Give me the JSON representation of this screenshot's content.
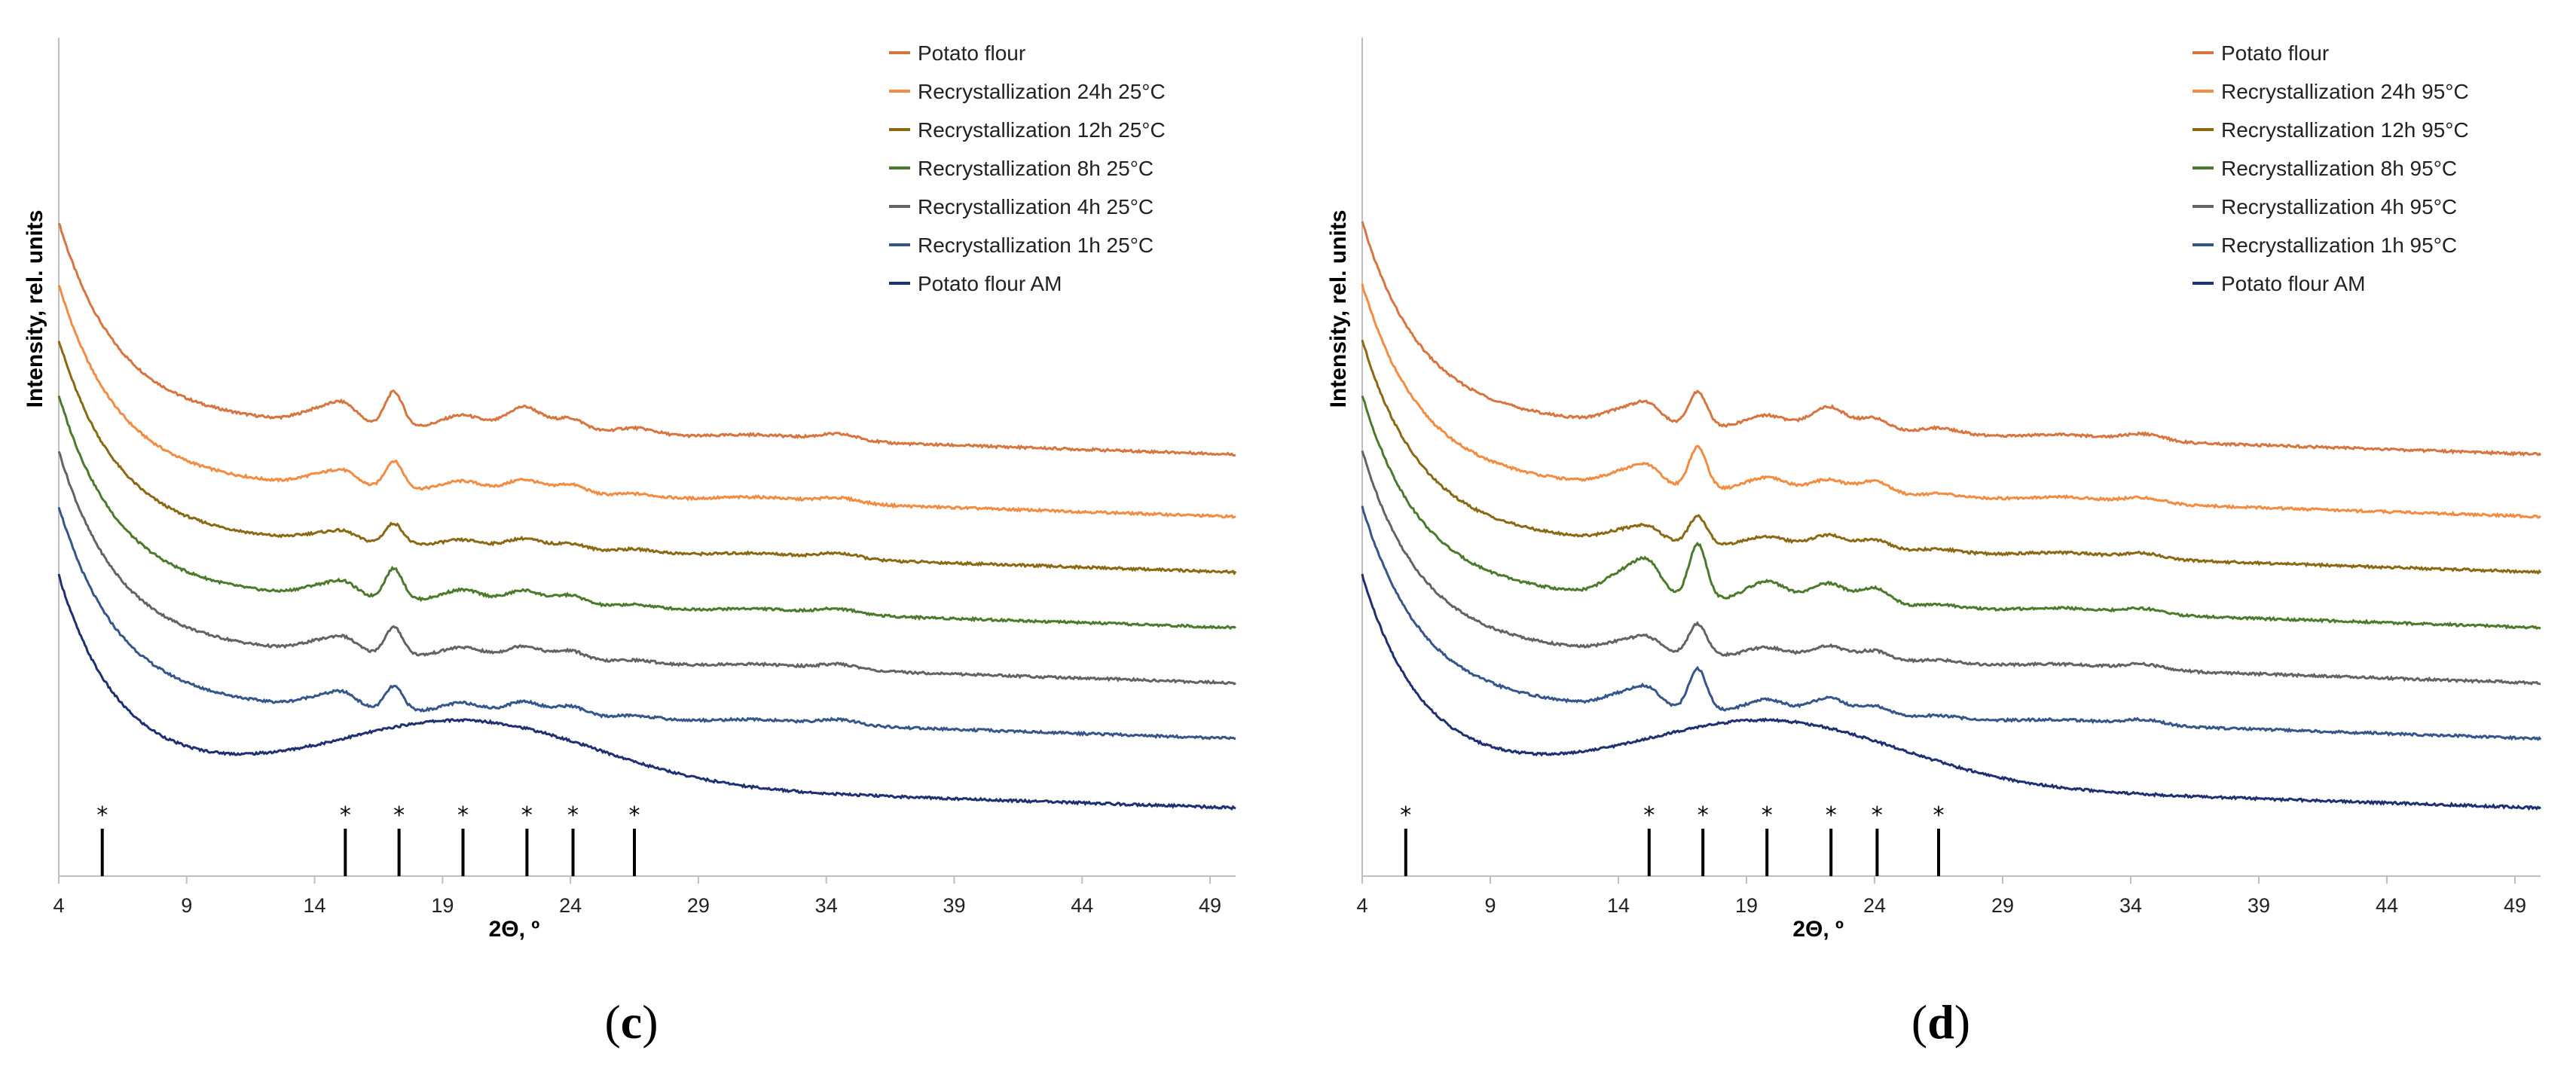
{
  "chart_data": [
    {
      "type": "line",
      "panel": "(c)",
      "panel_letter": "c",
      "xlabel": "2Θ, º",
      "ylabel": "Intensity, rel. units",
      "xlim": [
        4,
        50
      ],
      "xticks": [
        4,
        9,
        14,
        19,
        24,
        29,
        34,
        39,
        44,
        49
      ],
      "yticks": [],
      "ylim": [
        0,
        100
      ],
      "grid": false,
      "legend_position": "top-right",
      "reflection_markers": [
        5.7,
        15.2,
        17.3,
        19.8,
        22.3,
        24.1,
        26.5
      ],
      "reflection_marker_label": "*",
      "series": [
        {
          "name": "Potato flour",
          "color": "#D77540",
          "offset": 55,
          "peaks": [
            [
              14.3,
              2,
              0.8
            ],
            [
              15.2,
              2,
              0.5
            ],
            [
              17.1,
              5,
              0.35
            ],
            [
              19.8,
              2,
              0.8
            ],
            [
              22.2,
              3.5,
              0.7
            ],
            [
              24,
              2,
              0.6
            ],
            [
              26.5,
              1,
              0.8
            ],
            [
              31.5,
              0.6,
              1.5
            ],
            [
              34.5,
              1,
              0.8
            ]
          ]
        },
        {
          "name": "Recrystallization 24h 25°C",
          "color": "#F28C42",
          "offset": 46,
          "peaks": [
            [
              14.3,
              1.5,
              0.8
            ],
            [
              15.2,
              1.5,
              0.5
            ],
            [
              17.1,
              4,
              0.35
            ],
            [
              19.8,
              1.5,
              0.8
            ],
            [
              22.2,
              2,
              0.7
            ],
            [
              24,
              1.5,
              0.6
            ],
            [
              26.5,
              0.5,
              0.8
            ],
            [
              31.5,
              0.6,
              1.5
            ],
            [
              34.5,
              0.8,
              0.8
            ]
          ]
        },
        {
          "name": "Recrystallization 12h 25°C",
          "color": "#8B6914",
          "offset": 38,
          "peaks": [
            [
              14.3,
              1,
              0.8
            ],
            [
              15.2,
              1,
              0.5
            ],
            [
              17.1,
              3,
              0.35
            ],
            [
              19.8,
              1,
              0.8
            ],
            [
              22.2,
              1.5,
              0.7
            ],
            [
              24,
              1,
              0.6
            ],
            [
              26.5,
              0.5,
              0.8
            ],
            [
              31.5,
              0.5,
              1.5
            ],
            [
              34.5,
              0.8,
              0.8
            ]
          ]
        },
        {
          "name": "Recrystallization 8h 25°C",
          "color": "#4C7A2C",
          "offset": 30,
          "peaks": [
            [
              14.3,
              1.5,
              0.8
            ],
            [
              15.2,
              1.5,
              0.5
            ],
            [
              17.1,
              4.5,
              0.35
            ],
            [
              19.8,
              1.8,
              0.8
            ],
            [
              22.2,
              2,
              0.7
            ],
            [
              24,
              1.5,
              0.6
            ],
            [
              26.5,
              0.5,
              0.8
            ],
            [
              31.5,
              0.5,
              1.5
            ],
            [
              34.5,
              0.8,
              0.8
            ]
          ]
        },
        {
          "name": "Recrystallization 4h 25°C",
          "color": "#636363",
          "offset": 22,
          "peaks": [
            [
              14.3,
              1.5,
              0.8
            ],
            [
              15.2,
              1.5,
              0.5
            ],
            [
              17.1,
              4,
              0.35
            ],
            [
              19.8,
              1.5,
              0.8
            ],
            [
              22.2,
              2,
              0.7
            ],
            [
              24,
              1.5,
              0.6
            ],
            [
              26.5,
              0.5,
              0.8
            ],
            [
              31.5,
              0.5,
              1.5
            ],
            [
              34.5,
              0.8,
              0.8
            ]
          ]
        },
        {
          "name": "Recrystallization 1h 25°C",
          "color": "#34568B",
          "offset": 14,
          "peaks": [
            [
              14.3,
              1.5,
              0.8
            ],
            [
              15.2,
              1.5,
              0.5
            ],
            [
              17.1,
              3.5,
              0.35
            ],
            [
              19.8,
              1.5,
              0.8
            ],
            [
              22.2,
              2,
              0.7
            ],
            [
              24,
              1.5,
              0.6
            ],
            [
              26.5,
              0.5,
              0.8
            ],
            [
              31.5,
              0.5,
              1.5
            ],
            [
              34.5,
              0.8,
              0.8
            ]
          ]
        },
        {
          "name": "Potato flour AM",
          "color": "#1F3072",
          "offset": 4,
          "peaks": [
            [
              20,
              9,
              5
            ]
          ]
        }
      ]
    },
    {
      "type": "line",
      "panel": "(d)",
      "panel_letter": "d",
      "xlabel": "2Θ, º",
      "ylabel": "Intensity, rel. units",
      "xlim": [
        4,
        50
      ],
      "xticks": [
        4,
        9,
        14,
        19,
        24,
        29,
        34,
        39,
        44,
        49
      ],
      "yticks": [],
      "ylim": [
        0,
        100
      ],
      "grid": false,
      "legend_position": "top-right",
      "reflection_markers": [
        5.7,
        15.2,
        17.3,
        19.8,
        22.3,
        24.1,
        26.5
      ],
      "reflection_marker_label": "*",
      "series": [
        {
          "name": "Potato flour",
          "color": "#D77540",
          "offset": 55,
          "peaks": [
            [
              14.3,
              2,
              0.8
            ],
            [
              15.2,
              2,
              0.5
            ],
            [
              17.1,
              5,
              0.35
            ],
            [
              19.8,
              2,
              0.8
            ],
            [
              22.2,
              3.5,
              0.7
            ],
            [
              24,
              2,
              0.6
            ],
            [
              26.5,
              1,
              0.8
            ],
            [
              31.5,
              0.6,
              1.5
            ],
            [
              34.5,
              1,
              0.8
            ]
          ]
        },
        {
          "name": "Recrystallization 24h 95°C",
          "color": "#F28C42",
          "offset": 46,
          "peaks": [
            [
              14.3,
              2,
              0.8
            ],
            [
              15.2,
              2,
              0.5
            ],
            [
              17.1,
              6,
              0.35
            ],
            [
              19.8,
              2,
              0.8
            ],
            [
              22.2,
              2,
              0.7
            ],
            [
              24,
              2,
              0.6
            ],
            [
              26.5,
              0.5,
              0.8
            ],
            [
              31.5,
              0.6,
              1.5
            ],
            [
              34.5,
              0.8,
              0.8
            ]
          ]
        },
        {
          "name": "Recrystallization 12h 95°C",
          "color": "#8B6914",
          "offset": 38,
          "peaks": [
            [
              14.3,
              1.5,
              0.8
            ],
            [
              15.2,
              1.5,
              0.5
            ],
            [
              17.1,
              4,
              0.35
            ],
            [
              19.8,
              1.5,
              0.8
            ],
            [
              22.2,
              2,
              0.7
            ],
            [
              24,
              1.5,
              0.6
            ],
            [
              26.5,
              0.5,
              0.8
            ],
            [
              31.5,
              0.6,
              1.5
            ],
            [
              34.5,
              0.8,
              0.8
            ]
          ]
        },
        {
          "name": "Recrystallization 8h 95°C",
          "color": "#4C7A2C",
          "offset": 30,
          "peaks": [
            [
              14.3,
              3.5,
              0.8
            ],
            [
              15.2,
              3.5,
              0.5
            ],
            [
              17.1,
              8,
              0.35
            ],
            [
              19.8,
              3,
              0.8
            ],
            [
              22.2,
              3,
              0.7
            ],
            [
              24,
              2.5,
              0.6
            ],
            [
              26.5,
              0.5,
              0.8
            ],
            [
              31.5,
              0.6,
              1.5
            ],
            [
              34.5,
              0.8,
              0.8
            ]
          ]
        },
        {
          "name": "Recrystallization 4h 95°C",
          "color": "#636363",
          "offset": 22,
          "peaks": [
            [
              14.3,
              1.5,
              0.8
            ],
            [
              15.2,
              1.5,
              0.5
            ],
            [
              17.1,
              4.5,
              0.35
            ],
            [
              19.8,
              1.5,
              0.8
            ],
            [
              22.2,
              2,
              0.7
            ],
            [
              24,
              1.5,
              0.6
            ],
            [
              26.5,
              0.5,
              0.8
            ],
            [
              31.5,
              0.5,
              1.5
            ],
            [
              34.5,
              0.8,
              0.8
            ]
          ]
        },
        {
          "name": "Recrystallization 1h 95°C",
          "color": "#34568B",
          "offset": 14,
          "peaks": [
            [
              14.3,
              2,
              0.8
            ],
            [
              15.2,
              2,
              0.5
            ],
            [
              17.1,
              6,
              0.35
            ],
            [
              19.8,
              2,
              0.8
            ],
            [
              22.2,
              2.5,
              0.7
            ],
            [
              24,
              1.5,
              0.6
            ],
            [
              26.5,
              0.5,
              0.8
            ],
            [
              31.5,
              0.5,
              1.5
            ],
            [
              34.5,
              0.8,
              0.8
            ]
          ]
        },
        {
          "name": "Potato flour AM",
          "color": "#1F3072",
          "offset": 4,
          "peaks": [
            [
              20,
              9,
              5
            ]
          ]
        }
      ]
    }
  ]
}
